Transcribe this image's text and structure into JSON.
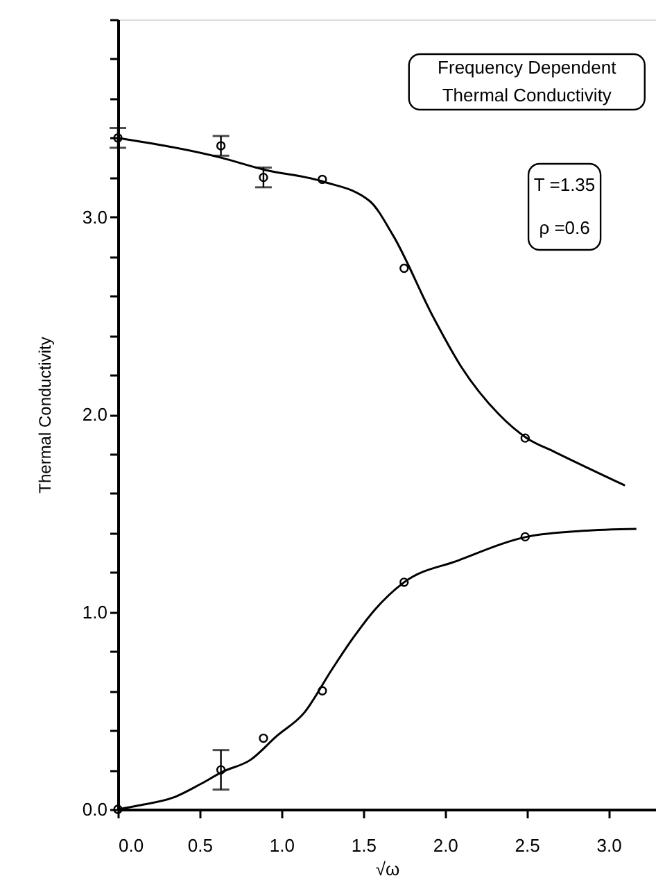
{
  "chart_data": {
    "type": "scatter",
    "xlabel": "√ω",
    "ylabel": "Thermal Conductivity",
    "annotations": [
      "Frequency Dependent\nThermal Conductivity",
      "T =1.35\nρ =0.6"
    ],
    "xlim": [
      0,
      3.29
    ],
    "ylim": [
      0,
      4.0
    ],
    "xticks": [
      {
        "value": 0,
        "label": "0.0"
      },
      0.5,
      {
        "value": 1,
        "label": "1.0"
      },
      1.5,
      {
        "value": 2,
        "label": "2.0"
      },
      2.5,
      {
        "value": 3,
        "label": "3.0"
      }
    ],
    "yticks": [
      {
        "value": 0,
        "label": "0.0"
      },
      {
        "value": 0.2,
        "label": null
      },
      {
        "value": 0.4,
        "label": null
      },
      {
        "value": 0.6,
        "label": null
      },
      {
        "value": 0.8,
        "label": null
      },
      {
        "value": 1,
        "label": "1.0"
      },
      {
        "value": 1.2,
        "label": null
      },
      {
        "value": 1.4,
        "label": null
      },
      {
        "value": 1.6,
        "label": null
      },
      {
        "value": 1.8,
        "label": null
      },
      {
        "value": 2,
        "label": "2.0"
      },
      {
        "value": 2.2,
        "label": null
      },
      {
        "value": 2.4,
        "label": null
      },
      {
        "value": 2.6,
        "label": null
      },
      {
        "value": 2.8,
        "label": null
      },
      {
        "value": 3,
        "label": "3.0"
      },
      {
        "value": 3.2,
        "label": null
      },
      {
        "value": 3.4,
        "label": null
      },
      {
        "value": 3.6,
        "label": null
      },
      {
        "value": 3.8,
        "label": null
      },
      {
        "value": 4.0,
        "label": null
      }
    ],
    "series": [
      {
        "marker": "circle",
        "color": "#000000",
        "x": [
          0,
          0.63,
          0.89,
          1.25,
          1.75,
          2.49
        ],
        "values": [
          3.4,
          3.36,
          3.2,
          3.19,
          2.74,
          1.88
        ],
        "errors": [
          0.05,
          0.05,
          0.05,
          null,
          null,
          null
        ]
      },
      {
        "marker": "circle",
        "color": "#000000",
        "x": [
          0,
          0.63,
          0.89,
          1.25,
          1.75,
          2.49
        ],
        "values": [
          0.0,
          0.2,
          0.36,
          0.6,
          1.15,
          1.38
        ],
        "errors": [
          null,
          0.1,
          null,
          null,
          null,
          null
        ]
      },
      {
        "type": "line",
        "color": "#000000",
        "x": [
          0,
          0.63,
          0.89,
          1.25,
          1.54,
          1.68,
          1.93,
          2.1,
          2.33,
          2.5,
          2.67,
          3.1
        ],
        "values": [
          3.4,
          3.3,
          3.24,
          3.18,
          3.08,
          2.91,
          2.49,
          2.24,
          2.0,
          1.88,
          1.81,
          1.64
        ]
      },
      {
        "type": "line",
        "color": "#000000",
        "x": [
          0,
          0.13,
          0.34,
          0.51,
          0.64,
          0.81,
          0.97,
          1.14,
          1.31,
          1.44,
          1.57,
          1.75,
          2.08,
          2.5,
          2.84,
          3.17
        ],
        "values": [
          0,
          0.02,
          0.06,
          0.13,
          0.19,
          0.25,
          0.37,
          0.49,
          0.71,
          0.87,
          1.01,
          1.15,
          1.26,
          1.38,
          1.41,
          1.42
        ]
      }
    ]
  }
}
